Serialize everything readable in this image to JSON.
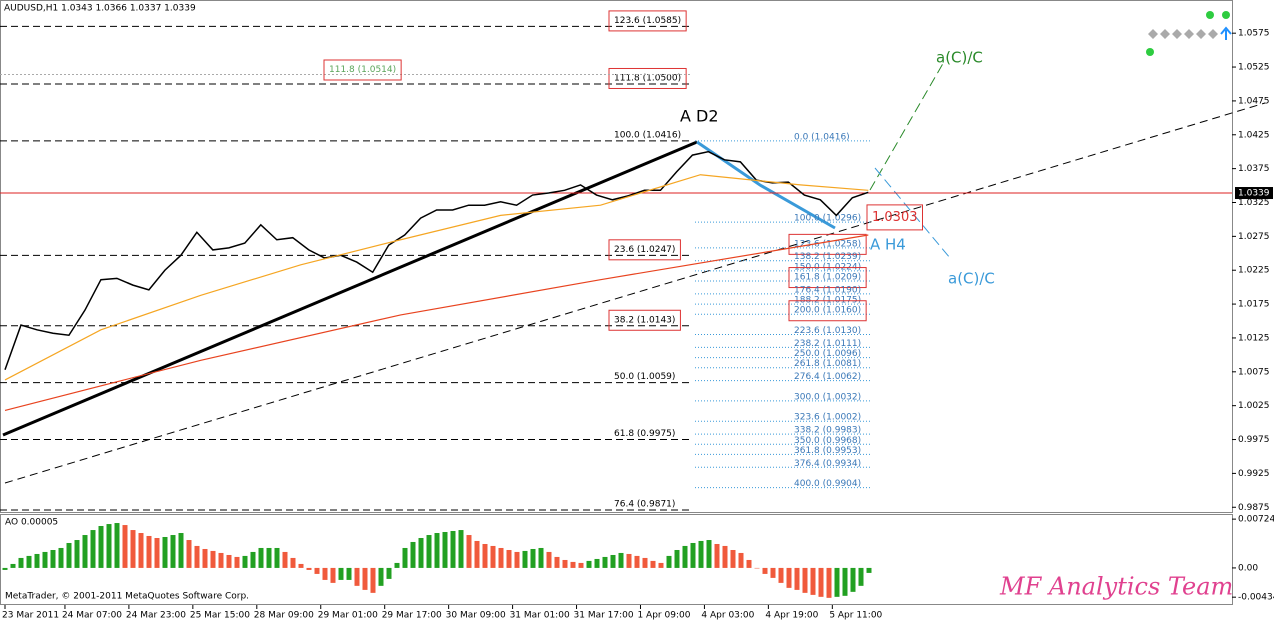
{
  "chart_data": {
    "type": "line",
    "title": "AUDUSD,H1  1.0343 1.0366 1.0337 1.0339",
    "xlim": [
      0,
      307
    ],
    "xticks": [
      {
        "value": 0,
        "label": "23 Mar 2011"
      },
      {
        "value": 15,
        "label": "24 Mar 07:00"
      },
      {
        "value": 31,
        "label": "24 Mar 23:00"
      },
      {
        "value": 47,
        "label": "25 Mar 15:00"
      },
      {
        "value": 63,
        "label": "28 Mar 09:00"
      },
      {
        "value": 79,
        "label": "29 Mar 01:00"
      },
      {
        "value": 95,
        "label": "29 Mar 17:00"
      },
      {
        "value": 111,
        "label": "30 Mar 09:00"
      },
      {
        "value": 127,
        "label": "31 Mar 01:00"
      },
      {
        "value": 143,
        "label": "31 Mar 17:00"
      },
      {
        "value": 159,
        "label": "1 Apr 09:00"
      },
      {
        "value": 175,
        "label": "4 Apr 03:00"
      },
      {
        "value": 191,
        "label": "4 Apr 19:00"
      },
      {
        "value": 207,
        "label": "5 Apr 11:00"
      }
    ],
    "ylim": [
      0.9868,
      1.0624
    ],
    "yticks": [
      1.0575,
      1.0525,
      1.0475,
      1.0425,
      1.0375,
      1.0325,
      1.0275,
      1.0225,
      1.0175,
      1.0125,
      1.0075,
      1.0025,
      0.9975,
      0.9925,
      0.9875
    ],
    "series": [
      {
        "color": "#000000",
        "x": [
          0,
          4,
          8,
          12,
          16,
          20,
          24,
          28,
          32,
          36,
          40,
          44,
          48,
          52,
          56,
          60,
          64,
          68,
          72,
          76,
          80,
          84,
          88,
          92,
          96,
          100,
          104,
          108,
          112,
          116,
          120,
          124,
          128,
          132,
          136,
          140,
          144,
          148,
          152,
          156,
          160,
          164,
          168,
          172,
          176,
          180,
          184,
          188,
          192,
          196,
          200,
          204,
          208,
          212,
          216
        ],
        "values": [
          1.0078,
          1.0144,
          1.0137,
          1.0132,
          1.0129,
          1.0166,
          1.0211,
          1.0213,
          1.0203,
          1.0196,
          1.0225,
          1.0247,
          1.0281,
          1.0255,
          1.0258,
          1.0265,
          1.0292,
          1.027,
          1.0273,
          1.0255,
          1.0243,
          1.0247,
          1.0237,
          1.0222,
          1.0262,
          1.0277,
          1.0302,
          1.0314,
          1.0314,
          1.0321,
          1.0321,
          1.0326,
          1.0321,
          1.0336,
          1.0339,
          1.0343,
          1.0351,
          1.0336,
          1.0329,
          1.0335,
          1.0343,
          1.0343,
          1.037,
          1.0395,
          1.04,
          1.0388,
          1.0385,
          1.0358,
          1.0354,
          1.0355,
          1.0336,
          1.0329,
          1.0306,
          1.0332,
          1.034
        ]
      },
      {
        "color": "#f5a623",
        "x": [
          0,
          24,
          49,
          74,
          99,
          124,
          149,
          174,
          199,
          216
        ],
        "values": [
          1.0063,
          1.0137,
          1.0188,
          1.0233,
          1.027,
          1.0306,
          1.0321,
          1.0366,
          1.0351,
          1.0343
        ]
      },
      {
        "color": "#e8431f",
        "x": [
          0,
          49,
          99,
          149,
          216
        ],
        "values": [
          1.0018,
          1.0092,
          1.0159,
          1.0211,
          1.0277
        ]
      }
    ],
    "current_price": 1.0339,
    "marker_price": 1.0303,
    "levels_left": [
      {
        "label": "123.6 (1.0585)",
        "value": 1.0585,
        "boxed": true
      },
      {
        "label": "111.8 (1.0500)",
        "value": 1.05,
        "boxed": true
      },
      {
        "label": "100.0 (1.0416)",
        "value": 1.0416
      },
      {
        "label": "23.6 (1.0247)",
        "value": 1.0247,
        "boxed": true
      },
      {
        "label": "38.2 (1.0143)",
        "value": 1.0143,
        "boxed": true
      },
      {
        "label": "50.0 (1.0059)",
        "value": 1.0059
      },
      {
        "label": "61.8 (0.9975)",
        "value": 0.9975
      },
      {
        "label": "76.4 (0.9871)",
        "value": 0.9871
      }
    ],
    "level_extra": {
      "label": "111.8 (1.0514)",
      "value": 1.0514,
      "color": "#5aa55a"
    },
    "levels_right": [
      {
        "label": "0.0 (1.0416)",
        "value": 1.0416
      },
      {
        "label": "100.0 (1.0296)",
        "value": 1.0296
      },
      {
        "label": "123.6 (1.0258)",
        "value": 1.0258,
        "boxed": true
      },
      {
        "label": "138.2 (1.0239)",
        "value": 1.0239
      },
      {
        "label": "150.0 (1.0224)",
        "value": 1.0224
      },
      {
        "label": "161.8 (1.0209)",
        "value": 1.0209,
        "boxed": true
      },
      {
        "label": "176.4 (1.0190)",
        "value": 1.019
      },
      {
        "label": "188.2 (1.0175)",
        "value": 1.0175
      },
      {
        "label": "200.0 (1.0160)",
        "value": 1.016,
        "boxed": true
      },
      {
        "label": "223.6 (1.0130)",
        "value": 1.013
      },
      {
        "label": "238.2 (1.0111)",
        "value": 1.0111
      },
      {
        "label": "250.0 (1.0096)",
        "value": 1.0096
      },
      {
        "label": "261.8 (1.0081)",
        "value": 1.0081
      },
      {
        "label": "276.4 (1.0062)",
        "value": 1.0062
      },
      {
        "label": "300.0 (1.0032)",
        "value": 1.0032
      },
      {
        "label": "323.6 (1.0002)",
        "value": 1.0002
      },
      {
        "label": "338.2 (0.9983)",
        "value": 0.9983
      },
      {
        "label": "350.0 (0.9968)",
        "value": 0.9968
      },
      {
        "label": "361.8 (0.9953)",
        "value": 0.9953
      },
      {
        "label": "376.4 (0.9934)",
        "value": 0.9934
      },
      {
        "label": "400.0 (0.9904)",
        "value": 0.9904
      }
    ],
    "annotations": [
      "A D2",
      "a(C)/C",
      "A H4",
      "a(C)/C"
    ]
  },
  "ao": {
    "title": "AO 0.00005",
    "ylim": [
      -0.0055,
      0.008
    ],
    "yticks": [
      0.00724,
      {
        "value": 0,
        "label": "0.00"
      },
      -0.00434
    ],
    "up_color": "#22a022",
    "down_color": "#f05a3c",
    "values": [
      -0.0003,
      0.00059,
      0.00148,
      0.00178,
      0.00207,
      0.00237,
      0.00266,
      0.00296,
      0.0037,
      0.00414,
      0.00488,
      0.00562,
      0.00622,
      0.00651,
      0.00666,
      0.00636,
      0.00562,
      0.00518,
      0.00474,
      0.00444,
      0.00459,
      0.00488,
      0.00518,
      0.00414,
      0.00326,
      0.00281,
      0.00252,
      0.00222,
      0.00192,
      0.00163,
      0.00178,
      0.00237,
      0.00296,
      0.00296,
      0.00296,
      0.00237,
      0.00148,
      0.00059,
      -0.0003,
      -0.00089,
      -0.00178,
      -0.00222,
      -0.00178,
      -0.00178,
      -0.00266,
      -0.00326,
      -0.0037,
      -0.00266,
      -0.00163,
      0.00074,
      0.00296,
      0.00385,
      0.00444,
      0.00488,
      0.00518,
      0.00533,
      0.00548,
      0.00562,
      0.00488,
      0.004,
      0.00355,
      0.00326,
      0.00296,
      0.00266,
      0.00237,
      0.00252,
      0.00281,
      0.00296,
      0.00237,
      0.00163,
      0.00118,
      0.00089,
      0.00074,
      0.00104,
      0.00133,
      0.00163,
      0.00192,
      0.00222,
      0.00207,
      0.00178,
      0.00148,
      0.00104,
      0.00074,
      0.00178,
      0.00266,
      0.00326,
      0.0037,
      0.004,
      0.00414,
      0.00355,
      0.00326,
      0.00266,
      0.00222,
      0.00118,
      0,
      -0.00089,
      -0.00148,
      -0.00222,
      -0.00296,
      -0.00326,
      -0.0037,
      -0.004,
      -0.00429,
      -0.00444,
      -0.00429,
      -0.00414,
      -0.00355,
      -0.00266,
      -0.00074
    ]
  },
  "footer": "MetaTrader, © 2001-2011 MetaQuotes Software Corp.",
  "watermark": "MF Analytics Team"
}
